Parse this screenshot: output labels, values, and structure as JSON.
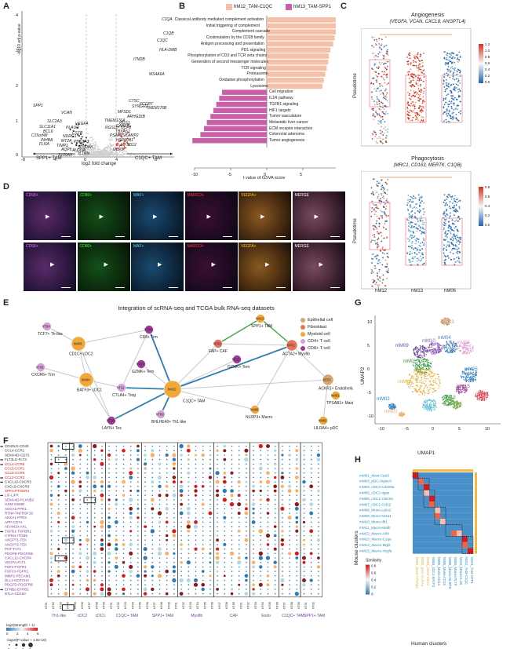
{
  "panels": {
    "A": "A",
    "B": "B",
    "C": "C",
    "D": "D",
    "E": "E",
    "F": "F",
    "G": "G",
    "H": "H"
  },
  "volcano": {
    "ylabel": "-log10 adj p-value",
    "xlabel": "log2 fold change",
    "xticks": [
      "-8",
      "-4",
      "0",
      "4",
      "8"
    ],
    "yticks": [
      "0",
      "1",
      "2",
      "3",
      "4"
    ],
    "left_arrow": "SPP1+ TAM",
    "right_arrow": "C1QC+ TAM",
    "genes": [
      "C1QA",
      "C1QB",
      "C1QC",
      "HLA-DMB",
      "ITM2B",
      "MS4A6A",
      "CTSC",
      "SYNGR2",
      "TMEM176B",
      "MFSD1",
      "ARHGDIB",
      "TMEM176A",
      "RGS1",
      "CAPZB",
      "UCP2",
      "RGS10",
      "TBXAS1",
      "PSAP1",
      "SCAMP2",
      "HSP90B1",
      "MFSD12",
      "UCP2",
      "FCGRT",
      "SPP1",
      "VCAN",
      "SLC2A3",
      "VEGFA",
      "SLC11A1",
      "PLAUR",
      "CSTB",
      "BCL6",
      "NDRG1",
      "C15orf48",
      "INHBA",
      "MT2A",
      "PHLDA3",
      "FLNA",
      "TIMP1",
      "S100A8",
      "ALDOA",
      "IL1RN",
      "S100A9",
      "AQP9"
    ]
  },
  "gsva": {
    "legend": [
      "hM12_TAM-C1QC",
      "hM13_TAM-SPP1"
    ],
    "xlabel": "t value of GSVA score",
    "xticks": [
      "-10",
      "-5",
      "0",
      "5",
      "10"
    ],
    "up_terms": [
      "Classical antibody mediated complement activation",
      "Initial triggering of complement",
      "Complement cascade",
      "Costimulation by the CD28 family",
      "Antigen processing and presentation",
      "PD1 signaling",
      "Phosphorylation of CD3 and TCR zeta chains",
      "Generation of second messenger molecules",
      "TCR signaling",
      "Proteasome",
      "Oxidative phosphorylation",
      "Lysosome"
    ],
    "down_terms": [
      "Cell migration",
      "IL1R pathway",
      "TGFB1 signaling",
      "HIF1 targets",
      "Tumor vasculature",
      "Metastatic liver cancer",
      "ECM receptor interaction",
      "Colorectal adenoma",
      "Tumor angiogenesis"
    ]
  },
  "chart_data": [
    {
      "type": "bar",
      "title": "",
      "xlabel": "t value of GSVA score",
      "categories": [
        "Classical antibody mediated complement activation",
        "Initial triggering of complement",
        "Complement cascade",
        "Costimulation by the CD28 family",
        "Antigen processing and presentation",
        "PD1 signaling",
        "Phosphorylation of CD3 and TCR zeta chains",
        "Generation of second messenger molecules",
        "TCR signaling",
        "Proteasome",
        "Oxidative phosphorylation",
        "Lysosome",
        "Cell migration",
        "IL1R pathway",
        "TGFB1 signaling",
        "HIF1 targets",
        "Tumor vasculature",
        "Metastatic liver cancer",
        "ECM receptor interaction",
        "Colorectal adenoma",
        "Tumor angiogenesis"
      ],
      "series": [
        {
          "name": "hM12_TAM-C1QC",
          "values": [
            11.0,
            10.3,
            9.8,
            9.4,
            9.2,
            8.8,
            8.6,
            8.5,
            8.3,
            8.1,
            7.9,
            7.7,
            0,
            0,
            0,
            0,
            0,
            0,
            0,
            0,
            0
          ]
        },
        {
          "name": "hM13_TAM-SPP1",
          "values": [
            0,
            0,
            0,
            0,
            0,
            0,
            0,
            0,
            0,
            0,
            0,
            0,
            -6.2,
            -6.6,
            -7.0,
            -7.4,
            -7.8,
            -8.3,
            -8.7,
            -9.2,
            -10.3
          ]
        }
      ],
      "xlim": [
        -10,
        12
      ]
    }
  ],
  "angio": {
    "title": "Angiogenesis",
    "subtitle": "(VEGFA, VCAN, CXCL8, ANGPTL4)",
    "ylabel": "Pseudotime",
    "colorbar": [
      "1.2",
      "1.0",
      "0.8",
      "0.6",
      "0.4",
      "0.2",
      "0.0"
    ]
  },
  "phago": {
    "title": "Phagocytosis",
    "subtitle": "(MRC1, CD163, MERTK, C1QB)",
    "ylabel": "Pseudotime",
    "colorbar": [
      "0.8",
      "0.6",
      "0.4",
      "0.2",
      "0.0"
    ],
    "groups": [
      "hM12",
      "hM13",
      "hM06"
    ]
  },
  "ihc": {
    "row1": [
      "CD68+",
      "CD80+",
      "MAF+",
      "MARCO+",
      "VEGFA+",
      "MERGE"
    ],
    "row2": [
      "CD68+",
      "CD80+",
      "MAF+",
      "MARCO+",
      "VEGFA+",
      "MERGE"
    ],
    "colors": [
      "#ff66ff",
      "#33ff33",
      "#66ddff",
      "#ff4040",
      "#ffcc33",
      "#ffffff"
    ]
  },
  "network": {
    "title": "Integration of scRNA-seq and TCGA bulk RNA-seq datasets",
    "legend": [
      "Epithelial cell",
      "Fibroblast",
      "Myeloid cell",
      "CD4+ T cell",
      "CD8+ T cell"
    ],
    "legend_colors": [
      "#d9a56e",
      "#e9735a",
      "#f2a738",
      "#d7a0d6",
      "#a3389a"
    ],
    "nodes": [
      {
        "id": "hT04",
        "label": "TCF7+ Th-like",
        "color": "#d7a0d6"
      },
      {
        "id": "hM03",
        "label": "CD1C+ cDC2",
        "color": "#f2a738"
      },
      {
        "id": "hT05",
        "label": "CXCR6+ Trm",
        "color": "#d7a0d6"
      },
      {
        "id": "hM04",
        "label": "BATF3+ cDC1",
        "color": "#f2a738"
      },
      {
        "id": "hT08",
        "label": "CD8+ Trm",
        "color": "#a3389a"
      },
      {
        "id": "hT07",
        "label": "GZMK+ Tem",
        "color": "#a3389a"
      },
      {
        "id": "hT11",
        "label": "CTLA4+ Treg",
        "color": "#d7a0d6"
      },
      {
        "id": "hM12",
        "label": "C1QC+ TAM",
        "color": "#f2a738"
      },
      {
        "id": "hT16",
        "label": "LAYN+ Tex",
        "color": "#a3389a"
      },
      {
        "id": "hT09",
        "label": "BHLHE40+ Th1-like",
        "color": "#d7a0d6"
      },
      {
        "id": "hM13",
        "label": "SPP1+ TAM",
        "color": "#f2a738"
      },
      {
        "id": "hF02",
        "label": "FAP+ CAF",
        "color": "#e9735a"
      },
      {
        "id": "hF01",
        "label": "ACTA2+ Myofib",
        "color": "#e9735a"
      },
      {
        "id": "hT15",
        "label": "GZMK+ Tem",
        "color": "#a3389a"
      },
      {
        "id": "hM08",
        "label": "NLRP3+ Macro",
        "color": "#f2a738"
      },
      {
        "id": "hE01",
        "label": "ACKR1+ Endothelium",
        "color": "#d9a56e"
      },
      {
        "id": "hM01",
        "label": "TPSAB1+ Mast",
        "color": "#f2a738"
      },
      {
        "id": "hM02",
        "label": "LILRA4+ pDC",
        "color": "#f2a738"
      }
    ]
  },
  "umap": {
    "xlabel": "UMAP1",
    "ylabel": "UMAP2",
    "xticks": [
      "-10",
      "-5",
      "0",
      "5",
      "10"
    ],
    "yticks": [
      "-10",
      "-5",
      "0",
      "5",
      "10"
    ],
    "clusters": [
      "mM03",
      "mM09",
      "mM10",
      "mM04",
      "mM06",
      "mM08",
      "mM05",
      "mM11",
      "mM15",
      "mM07",
      "mM13",
      "mM12",
      "mM14",
      "mM02",
      "mM01"
    ]
  },
  "dotplot": {
    "rows": [
      "CD40LG-CD40",
      "CCL4-CCR1",
      "SEMA4D-CD72",
      "FLT3LG-FLT3",
      "CCL4-CCR5",
      "CCL5-CCR1",
      "CCL5-CCR5",
      "CCL2-CCR2",
      "CXCL10-CXCR3",
      "CXCL9-CXCR3",
      "SPP1-PTGER4",
      "LIF-LIFR",
      "SEMA4D-PLXNB2",
      "OSM-OSMR",
      "ANXA1-FPR1",
      "RTN4-TNFRSF19",
      "ANXA1-FPR2",
      "APP-CD74",
      "ADAM10-AXL",
      "TGFB1-TGFBR1",
      "CYR61-ITGB5",
      "ANGPT1-TEK",
      "ANGPT2-TEK",
      "PGF-FLT1",
      "PDGFB-PDGFRB",
      "CXCL12-CXCR4",
      "VEGFA-FLT1",
      "FGF2-FGFR1",
      "FGF23-FGFR1",
      "MMP2-PECAM1",
      "DLL1-NOTCH3",
      "PDGFD-PDGFRB",
      "EFNB2-EPHB2",
      "BTLA-CD160"
    ],
    "groups": [
      "Th1-like",
      "cDC2",
      "cDC1",
      "C1QC+ TAM",
      "SPP1+ TAM",
      "Myofib",
      "CAF",
      "Endo",
      "C1QC+ TAM",
      "SPP1+ TAM"
    ],
    "legend_color": "log2(Strength + 1)",
    "legend_color_ticks": [
      "0",
      "2",
      "4",
      "6"
    ],
    "legend_size": "-log10(P value + 1.0e-10)",
    "legend_size_ticks": [
      "0",
      "1",
      "2",
      "3"
    ]
  },
  "similarity": {
    "ylabel": "Mouse clusters",
    "xlabel": "Human clusters",
    "legend_title": "Similarity",
    "legend_ticks": [
      "0.8",
      "0.6",
      "0.4",
      "0.2",
      "0"
    ],
    "mouse": [
      "mM01_Mast-Cpa3",
      "mM03_pDC-Siglech",
      "mM04_cDC2-Cd209a",
      "mM05_cDC2-Itgax",
      "mM06_cDC1-Clec9a",
      "mM07_cDC1-Ccl22",
      "mM08_Mono-Ly6c2",
      "mM09_Mono-Nr4a1",
      "mM10_Mono-Ifit1",
      "mM11_Macro-Mafb",
      "mM12_Macro-Atf4",
      "mM13_Macro-C1qa",
      "mM14_Macro-Mgl2",
      "mM15_Macro-Vegfa"
    ],
    "human": [
      "hM01_Mast-TPSAB1",
      "hM02_pDC-LILRA4",
      "hM03_cDC2-CD1C",
      "hM04_cDC1-BATF3",
      "hM05_Mono-CD14",
      "hM06_Mono-CD16",
      "hM08_Macro-NLRP3",
      "hM09_Macro-PLTP",
      "hM10_Macro-IL1B",
      "hM12_TAM-C1QC",
      "hM13_TAM-SPP1"
    ]
  }
}
